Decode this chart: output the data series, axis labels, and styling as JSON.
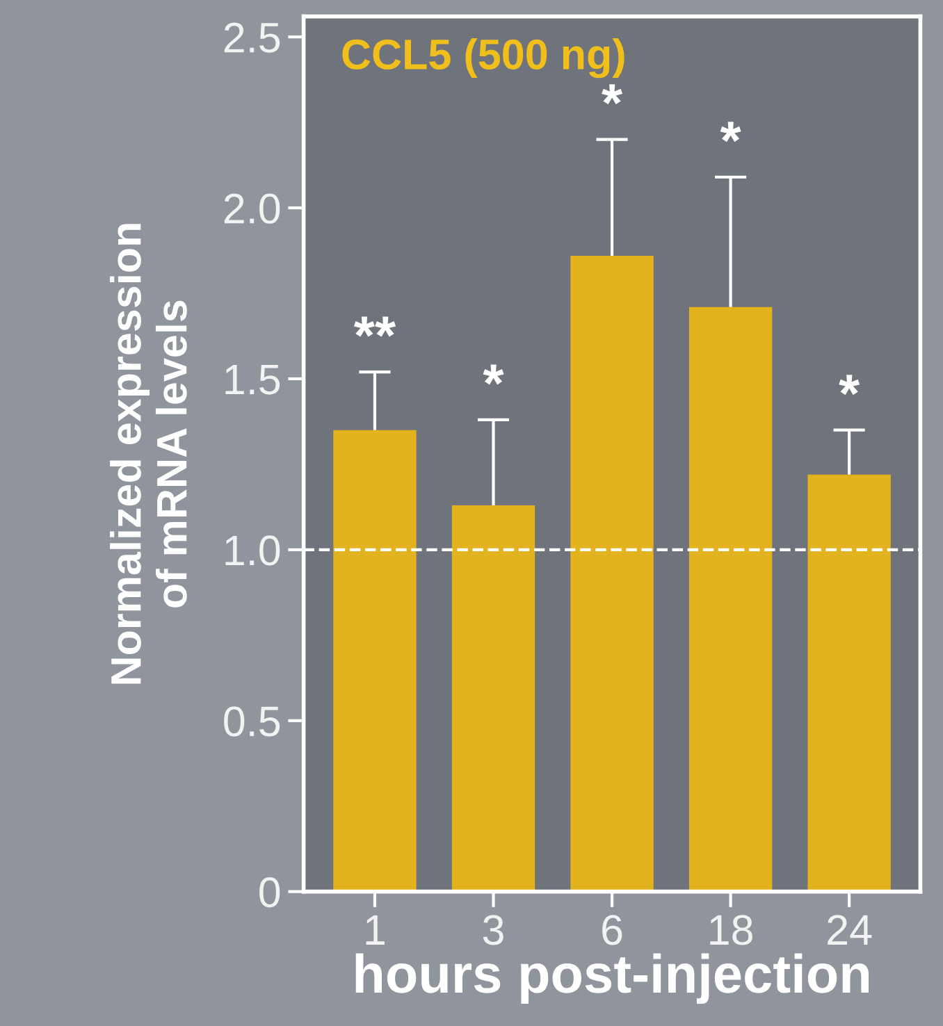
{
  "chart_data": {
    "type": "bar",
    "title": "CCL5 (500 ng)",
    "xlabel": "hours post-injection",
    "ylabel": "Normalized expression\nof mRNA levels",
    "categories": [
      "1",
      "3",
      "6",
      "18",
      "24"
    ],
    "values": [
      1.35,
      1.13,
      1.86,
      1.71,
      1.22
    ],
    "errors": [
      [
        1.35,
        1.52
      ],
      [
        1.13,
        1.38
      ],
      [
        1.86,
        2.2
      ],
      [
        1.71,
        2.09
      ],
      [
        1.22,
        1.35
      ]
    ],
    "color": "#e2b31e",
    "ylim": [
      0,
      2.56
    ],
    "yticks": [
      0,
      {
        "value": 0.5,
        "label": "0.5"
      },
      {
        "value": 1,
        "label": "1.0"
      },
      {
        "value": 1.5,
        "label": "1.5"
      },
      {
        "value": 2,
        "label": "2.0"
      },
      {
        "value": 2.5,
        "label": "2.5"
      }
    ],
    "ref_lines": [
      {
        "axis": "y",
        "value": 1,
        "label": null,
        "color": "#ffffff",
        "line_style": "dashed"
      }
    ],
    "annotations": [
      {
        "text": "**",
        "x": "1",
        "y": 1.52
      },
      {
        "text": "*",
        "x": "3",
        "y": 1.38
      },
      {
        "text": "*",
        "x": "6",
        "y": 2.2
      },
      {
        "text": "*",
        "x": "18",
        "y": 2.09
      },
      {
        "text": "*",
        "x": "24",
        "y": 1.35
      }
    ],
    "grid": false,
    "legend": false
  }
}
